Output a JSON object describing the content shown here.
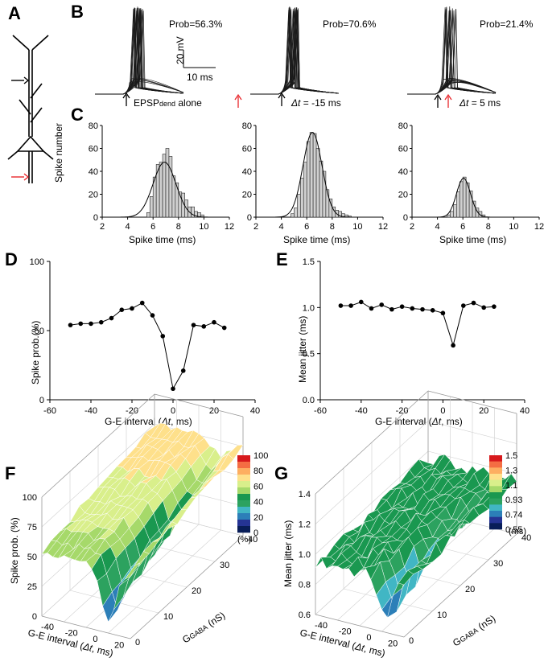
{
  "panel_labels": {
    "A": "A",
    "B": "B",
    "C": "C",
    "D": "D",
    "E": "E",
    "F": "F",
    "G": "G"
  },
  "panel_b": {
    "traces": [
      {
        "prob": "Prob=56.3%",
        "note": "EPSPdend alone",
        "note_main": "EPSP",
        "note_sub": "dend",
        "note_rest": " alone",
        "red_arrow_right": true
      },
      {
        "prob": "Prob=70.6%",
        "note_italic": "Δt",
        "note_rest": " = -15 ms"
      },
      {
        "prob": "Prob=21.4%",
        "note_italic": "Δt",
        "note_rest": " = 5 ms",
        "red_arrow_left": true
      }
    ],
    "scale_v": "20 mV",
    "scale_h": "10 ms"
  },
  "chart_data": [
    {
      "id": "C",
      "type": "bar",
      "title": "",
      "ylabel": "Spike number",
      "xlabel": "Spike time (ms)",
      "xlim": [
        2,
        12
      ],
      "ylim": [
        0,
        80
      ],
      "xticks": [
        "2",
        "4",
        "6",
        "8",
        "10",
        "12"
      ],
      "yticks": [
        "0",
        "20",
        "40",
        "60",
        "80"
      ],
      "bin_width": 0.25,
      "hist": [
        {
          "starts": [
            5.5,
            5.75,
            6.0,
            6.25,
            6.5,
            6.75,
            7.0,
            7.25,
            7.5,
            7.75,
            8.0,
            8.25,
            8.5,
            8.75,
            9.0,
            9.25,
            9.5,
            9.75
          ],
          "counts": [
            4,
            18,
            35,
            46,
            48,
            55,
            60,
            53,
            36,
            30,
            22,
            21,
            15,
            9,
            9,
            5,
            4,
            2
          ],
          "fit_mean": 6.9,
          "fit_sd": 0.9,
          "fit_peak": 48
        },
        {
          "starts": [
            4.75,
            5.0,
            5.25,
            5.5,
            5.75,
            6.0,
            6.25,
            6.5,
            6.75,
            7.0,
            7.25,
            7.5,
            7.75,
            8.0,
            8.25,
            8.5,
            8.75,
            9.0,
            9.25
          ],
          "counts": [
            3,
            8,
            20,
            34,
            48,
            66,
            74,
            73,
            60,
            49,
            40,
            24,
            16,
            9,
            6,
            5,
            3,
            2,
            1
          ],
          "fit_mean": 6.45,
          "fit_sd": 0.75,
          "fit_peak": 74
        },
        {
          "starts": [
            4.75,
            5.0,
            5.25,
            5.5,
            5.75,
            6.0,
            6.25,
            6.5,
            6.75,
            7.0,
            7.25,
            7.5
          ],
          "counts": [
            2,
            5,
            11,
            22,
            31,
            35,
            30,
            23,
            14,
            8,
            5,
            2
          ],
          "fit_mean": 6.05,
          "fit_sd": 0.55,
          "fit_peak": 34
        }
      ]
    },
    {
      "id": "D",
      "type": "line",
      "title": "",
      "xlabel": "G-E interval (",
      "xlabel_italic": "Δt",
      "xlabel_end": ", ms)",
      "ylabel": "Spike prob.(%)",
      "xlim": [
        -60,
        40
      ],
      "ylim": [
        0,
        100
      ],
      "xticks": [
        "-60",
        "-40",
        "-20",
        "0",
        "20",
        "40"
      ],
      "yticks": [
        "0",
        "50",
        "100"
      ],
      "x": [
        -50,
        -45,
        -40,
        -35,
        -30,
        -25,
        -20,
        -15,
        -10,
        -5,
        0,
        5,
        10,
        15,
        20,
        25
      ],
      "y": [
        54,
        55,
        55,
        56,
        59,
        65,
        66,
        70,
        61,
        46,
        8,
        21,
        54,
        53,
        56,
        52
      ]
    },
    {
      "id": "E",
      "type": "line",
      "title": "",
      "xlabel": "G-E interval (",
      "xlabel_italic": "Δt",
      "xlabel_end": ", ms)",
      "ylabel": "Mean jitter (ms)",
      "xlim": [
        -60,
        40
      ],
      "ylim": [
        0,
        1.5
      ],
      "xticks": [
        "-60",
        "-40",
        "-20",
        "0",
        "20",
        "40"
      ],
      "yticks": [
        "0.0",
        "0.5",
        "1.0",
        "1.5"
      ],
      "x": [
        -50,
        -45,
        -40,
        -35,
        -30,
        -25,
        -20,
        -15,
        -10,
        -5,
        0,
        5,
        10,
        15,
        20,
        25
      ],
      "y": [
        1.02,
        1.02,
        1.06,
        0.99,
        1.03,
        0.98,
        1.01,
        0.99,
        0.98,
        0.97,
        0.94,
        0.59,
        1.02,
        1.05,
        1.0,
        1.01
      ]
    },
    {
      "id": "F",
      "type": "surface",
      "zlabel": "Spike prob. (%)",
      "xlabel_a": "G-E interval (",
      "xlabel_italic": "Δt",
      "xlabel_end": ", ms)",
      "ylabel_main": "G",
      "ylabel_sub": "GABA",
      "ylabel_end": " (nS)",
      "xticks": [
        "-40",
        "-20",
        "0",
        "20"
      ],
      "yticks": [
        "0",
        "10",
        "20",
        "30",
        "40"
      ],
      "zticks": [
        "0",
        "25",
        "50",
        "75",
        "100"
      ],
      "zlim": [
        0,
        100
      ],
      "colorbar_ticks": [
        "100",
        "80",
        "60",
        "40",
        "20",
        "0"
      ],
      "colorbar_unit": "(%)",
      "colorbar_colors": [
        "#d7191c",
        "#f46d43",
        "#fdae61",
        "#fee08b",
        "#d9ef8b",
        "#a6d96a",
        "#1a9850",
        "#2ca25f",
        "#41b6c4",
        "#2c7fb8",
        "#253494",
        "#081d58"
      ]
    },
    {
      "id": "G",
      "type": "surface",
      "zlabel": "Mean jitter (ms)",
      "xlabel_a": "G-E interval (",
      "xlabel_italic": "Δt",
      "xlabel_end": ", ms)",
      "ylabel_main": "G",
      "ylabel_sub": "GABA",
      "ylabel_end": " (nS)",
      "xticks": [
        "-40",
        "-20",
        "0",
        "20"
      ],
      "yticks": [
        "0",
        "10",
        "20",
        "30",
        "40"
      ],
      "zticks": [
        "0.6",
        "0.8",
        "1.0",
        "1.2",
        "1.4"
      ],
      "zlim": [
        0.6,
        1.5
      ],
      "colorbar_ticks": [
        "1.5",
        "1.3",
        "1.1",
        "0.93",
        "0.74",
        "0.55"
      ],
      "colorbar_unit": "(ms)",
      "colorbar_colors": [
        "#d7191c",
        "#f46d43",
        "#fdae61",
        "#fee08b",
        "#d9ef8b",
        "#a6d96a",
        "#1a9850",
        "#2ca25f",
        "#41b6c4",
        "#2c7fb8",
        "#253494",
        "#081d58"
      ]
    }
  ]
}
